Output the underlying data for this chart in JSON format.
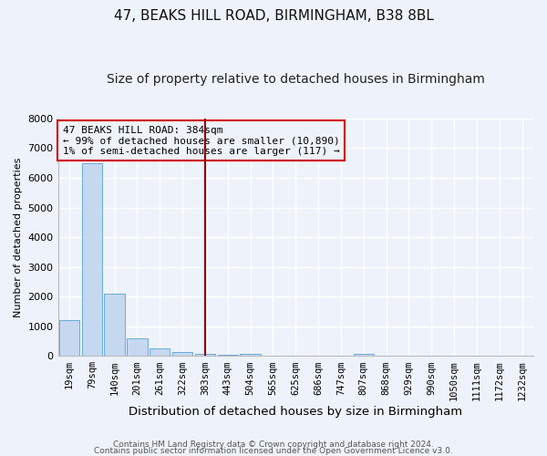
{
  "title": "47, BEAKS HILL ROAD, BIRMINGHAM, B38 8BL",
  "subtitle": "Size of property relative to detached houses in Birmingham",
  "xlabel": "Distribution of detached houses by size in Birmingham",
  "ylabel": "Number of detached properties",
  "bar_color": "#c5d8f0",
  "bar_edge_color": "#5a9fd4",
  "vline_color": "#8b0000",
  "vline_x": 6,
  "annotation_text": "47 BEAKS HILL ROAD: 384sqm\n← 99% of detached houses are smaller (10,890)\n1% of semi-detached houses are larger (117) →",
  "footer1": "Contains HM Land Registry data © Crown copyright and database right 2024.",
  "footer2": "Contains public sector information licensed under the Open Government Licence v3.0.",
  "categories": [
    "19sqm",
    "79sqm",
    "140sqm",
    "201sqm",
    "261sqm",
    "322sqm",
    "383sqm",
    "443sqm",
    "504sqm",
    "565sqm",
    "625sqm",
    "686sqm",
    "747sqm",
    "807sqm",
    "868sqm",
    "929sqm",
    "990sqm",
    "1050sqm",
    "1111sqm",
    "1172sqm",
    "1232sqm"
  ],
  "values": [
    1200,
    6500,
    2100,
    600,
    250,
    130,
    80,
    40,
    80,
    0,
    0,
    0,
    0,
    80,
    0,
    0,
    0,
    0,
    0,
    0,
    0
  ],
  "ylim": [
    0,
    8000
  ],
  "yticks": [
    0,
    1000,
    2000,
    3000,
    4000,
    5000,
    6000,
    7000,
    8000
  ],
  "background_color": "#eef2fa",
  "box_color": "#cc0000",
  "grid_color": "white",
  "title_fontsize": 11,
  "subtitle_fontsize": 10,
  "tick_fontsize": 7.5,
  "ylabel_fontsize": 8,
  "xlabel_fontsize": 9.5
}
